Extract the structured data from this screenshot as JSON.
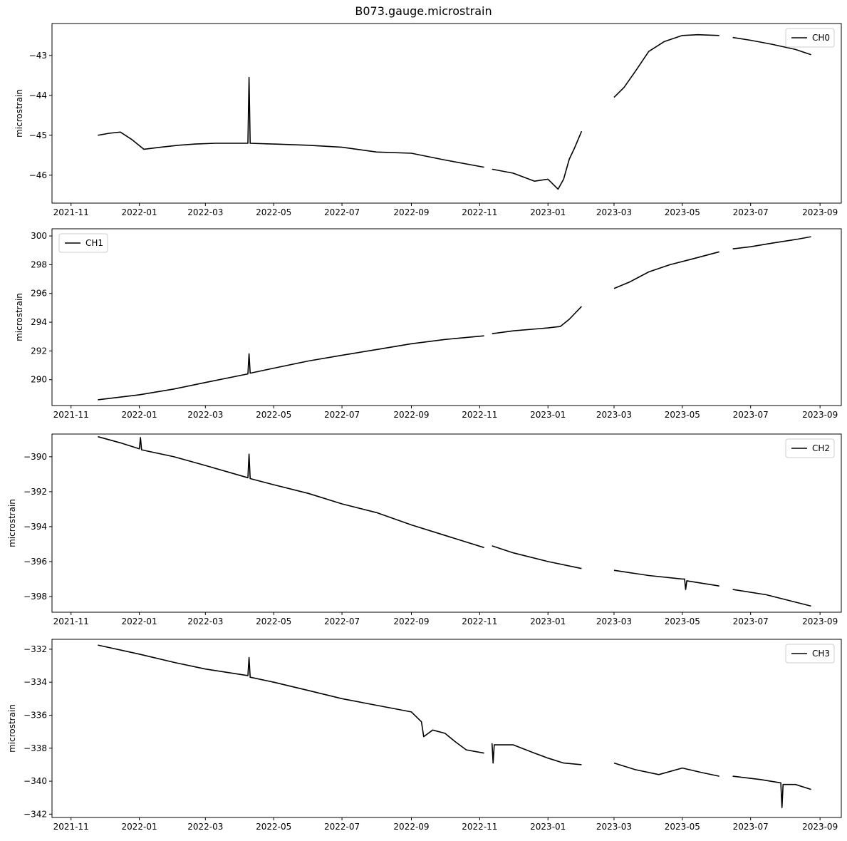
{
  "chart_data": {
    "type": "line",
    "title": "B073.gauge.microstrain",
    "xlim": [
      "2021-10-15",
      "2023-09-20"
    ],
    "xticks": [
      "2021-11",
      "2022-01",
      "2022-03",
      "2022-05",
      "2022-07",
      "2022-09",
      "2022-11",
      "2023-01",
      "2023-03",
      "2023-05",
      "2023-07",
      "2023-09"
    ],
    "line_color": "#000000",
    "grid": false,
    "panels": [
      {
        "ylabel": "microstrain",
        "legend": "CH0",
        "legend_position": "upper right",
        "ylim": [
          -46.7,
          -42.2
        ],
        "yticks": [
          -46,
          -45,
          -44,
          -43
        ],
        "segments": [
          [
            [
              "2021-11-25",
              -45.0
            ],
            [
              "2021-12-05",
              -44.95
            ],
            [
              "2021-12-15",
              -44.92
            ],
            [
              "2021-12-25",
              -45.1
            ],
            [
              "2022-01-05",
              -45.35
            ],
            [
              "2022-01-20",
              -45.3
            ],
            [
              "2022-02-05",
              -45.25
            ],
            [
              "2022-02-20",
              -45.22
            ],
            [
              "2022-03-10",
              -45.2
            ],
            [
              "2022-04-01",
              -45.2
            ],
            [
              "2022-04-08",
              -45.2
            ],
            [
              "2022-04-09",
              -43.55
            ],
            [
              "2022-04-10",
              -45.2
            ],
            [
              "2022-05-01",
              -45.22
            ],
            [
              "2022-06-01",
              -45.25
            ],
            [
              "2022-07-01",
              -45.3
            ],
            [
              "2022-08-01",
              -45.42
            ],
            [
              "2022-09-01",
              -45.45
            ],
            [
              "2022-10-01",
              -45.62
            ],
            [
              "2022-11-05",
              -45.8
            ]
          ],
          [
            [
              "2022-11-12",
              -45.85
            ],
            [
              "2022-12-01",
              -45.95
            ],
            [
              "2022-12-20",
              -46.15
            ],
            [
              "2023-01-01",
              -46.1
            ],
            [
              "2023-01-10",
              -46.35
            ],
            [
              "2023-01-15",
              -46.1
            ],
            [
              "2023-01-20",
              -45.6
            ],
            [
              "2023-01-25",
              -45.3
            ],
            [
              "2023-01-31",
              -44.9
            ]
          ],
          [
            [
              "2023-03-01",
              -44.05
            ],
            [
              "2023-03-10",
              -43.8
            ],
            [
              "2023-03-20",
              -43.4
            ],
            [
              "2023-04-01",
              -42.9
            ],
            [
              "2023-04-15",
              -42.65
            ],
            [
              "2023-05-01",
              -42.5
            ],
            [
              "2023-05-15",
              -42.48
            ],
            [
              "2023-06-03",
              -42.5
            ]
          ],
          [
            [
              "2023-06-15",
              -42.55
            ],
            [
              "2023-07-01",
              -42.62
            ],
            [
              "2023-07-20",
              -42.72
            ],
            [
              "2023-08-10",
              -42.85
            ],
            [
              "2023-08-24",
              -42.98
            ]
          ]
        ]
      },
      {
        "ylabel": "microstrain",
        "legend": "CH1",
        "legend_position": "upper left",
        "ylim": [
          288.2,
          300.5
        ],
        "yticks": [
          290,
          292,
          294,
          296,
          298,
          300
        ],
        "segments": [
          [
            [
              "2021-11-25",
              288.6
            ],
            [
              "2022-01-01",
              288.95
            ],
            [
              "2022-02-01",
              289.35
            ],
            [
              "2022-03-01",
              289.8
            ],
            [
              "2022-04-08",
              290.4
            ],
            [
              "2022-04-09",
              291.8
            ],
            [
              "2022-04-10",
              290.45
            ],
            [
              "2022-05-01",
              290.8
            ],
            [
              "2022-06-01",
              291.3
            ],
            [
              "2022-07-01",
              291.7
            ],
            [
              "2022-08-01",
              292.1
            ],
            [
              "2022-09-01",
              292.5
            ],
            [
              "2022-10-01",
              292.8
            ],
            [
              "2022-11-05",
              293.05
            ]
          ],
          [
            [
              "2022-11-12",
              293.2
            ],
            [
              "2022-12-01",
              293.4
            ],
            [
              "2023-01-01",
              293.6
            ],
            [
              "2023-01-12",
              293.7
            ],
            [
              "2023-01-20",
              294.2
            ],
            [
              "2023-01-31",
              295.1
            ]
          ],
          [
            [
              "2023-03-01",
              296.35
            ],
            [
              "2023-03-15",
              296.8
            ],
            [
              "2023-04-01",
              297.5
            ],
            [
              "2023-04-20",
              298.0
            ],
            [
              "2023-05-10",
              298.4
            ],
            [
              "2023-06-03",
              298.9
            ]
          ],
          [
            [
              "2023-06-15",
              299.1
            ],
            [
              "2023-07-01",
              299.25
            ],
            [
              "2023-07-20",
              299.5
            ],
            [
              "2023-08-10",
              299.75
            ],
            [
              "2023-08-24",
              299.95
            ]
          ]
        ]
      },
      {
        "ylabel": "microstrain",
        "legend": "CH2",
        "legend_position": "upper right",
        "ylim": [
          -398.9,
          -388.7
        ],
        "yticks": [
          -398,
          -396,
          -394,
          -392,
          -390
        ],
        "segments": [
          [
            [
              "2021-11-25",
              -388.85
            ],
            [
              "2021-12-15",
              -389.2
            ],
            [
              "2022-01-01",
              -389.55
            ],
            [
              "2022-01-02",
              -388.9
            ],
            [
              "2022-01-03",
              -389.6
            ],
            [
              "2022-02-01",
              -390.0
            ],
            [
              "2022-03-01",
              -390.5
            ],
            [
              "2022-04-08",
              -391.2
            ],
            [
              "2022-04-09",
              -389.85
            ],
            [
              "2022-04-10",
              -391.25
            ],
            [
              "2022-05-01",
              -391.6
            ],
            [
              "2022-06-01",
              -392.1
            ],
            [
              "2022-07-01",
              -392.7
            ],
            [
              "2022-08-01",
              -393.2
            ],
            [
              "2022-09-01",
              -393.9
            ],
            [
              "2022-10-01",
              -394.5
            ],
            [
              "2022-11-05",
              -395.2
            ]
          ],
          [
            [
              "2022-11-12",
              -395.1
            ],
            [
              "2022-12-01",
              -395.5
            ],
            [
              "2023-01-01",
              -396.0
            ],
            [
              "2023-01-31",
              -396.4
            ]
          ],
          [
            [
              "2023-03-01",
              -396.5
            ],
            [
              "2023-04-01",
              -396.8
            ],
            [
              "2023-05-01",
              -397.0
            ],
            [
              "2023-05-03",
              -397.0
            ],
            [
              "2023-05-04",
              -397.6
            ],
            [
              "2023-05-05",
              -397.1
            ],
            [
              "2023-06-03",
              -397.4
            ]
          ],
          [
            [
              "2023-06-15",
              -397.6
            ],
            [
              "2023-07-15",
              -397.9
            ],
            [
              "2023-08-24",
              -398.55
            ]
          ]
        ]
      },
      {
        "ylabel": "microstrain",
        "legend": "CH3",
        "legend_position": "upper right",
        "ylim": [
          -342.2,
          -331.4
        ],
        "yticks": [
          -342,
          -340,
          -338,
          -336,
          -334,
          -332
        ],
        "segments": [
          [
            [
              "2021-11-25",
              -331.75
            ],
            [
              "2022-01-01",
              -332.3
            ],
            [
              "2022-02-01",
              -332.8
            ],
            [
              "2022-03-01",
              -333.2
            ],
            [
              "2022-04-08",
              -333.6
            ],
            [
              "2022-04-09",
              -332.5
            ],
            [
              "2022-04-10",
              -333.7
            ],
            [
              "2022-05-01",
              -334.0
            ],
            [
              "2022-06-01",
              -334.5
            ],
            [
              "2022-07-01",
              -335.0
            ],
            [
              "2022-08-01",
              -335.4
            ],
            [
              "2022-09-01",
              -335.8
            ],
            [
              "2022-09-10",
              -336.4
            ],
            [
              "2022-09-12",
              -337.3
            ],
            [
              "2022-09-20",
              -336.9
            ],
            [
              "2022-10-01",
              -337.1
            ],
            [
              "2022-10-10",
              -337.6
            ],
            [
              "2022-10-20",
              -338.1
            ],
            [
              "2022-11-05",
              -338.3
            ]
          ],
          [
            [
              "2022-11-12",
              -337.7
            ],
            [
              "2022-11-13",
              -338.9
            ],
            [
              "2022-11-14",
              -337.8
            ],
            [
              "2022-12-01",
              -337.8
            ],
            [
              "2022-12-20",
              -338.3
            ],
            [
              "2023-01-01",
              -338.6
            ],
            [
              "2023-01-15",
              -338.9
            ],
            [
              "2023-01-31",
              -339.0
            ]
          ],
          [
            [
              "2023-03-01",
              -338.9
            ],
            [
              "2023-03-20",
              -339.3
            ],
            [
              "2023-04-10",
              -339.6
            ],
            [
              "2023-05-01",
              -339.2
            ],
            [
              "2023-05-20",
              -339.5
            ],
            [
              "2023-06-03",
              -339.7
            ]
          ],
          [
            [
              "2023-06-15",
              -339.7
            ],
            [
              "2023-07-10",
              -339.9
            ],
            [
              "2023-07-28",
              -340.1
            ],
            [
              "2023-07-29",
              -341.6
            ],
            [
              "2023-07-30",
              -340.2
            ],
            [
              "2023-08-10",
              -340.2
            ],
            [
              "2023-08-24",
              -340.5
            ]
          ]
        ]
      }
    ]
  }
}
